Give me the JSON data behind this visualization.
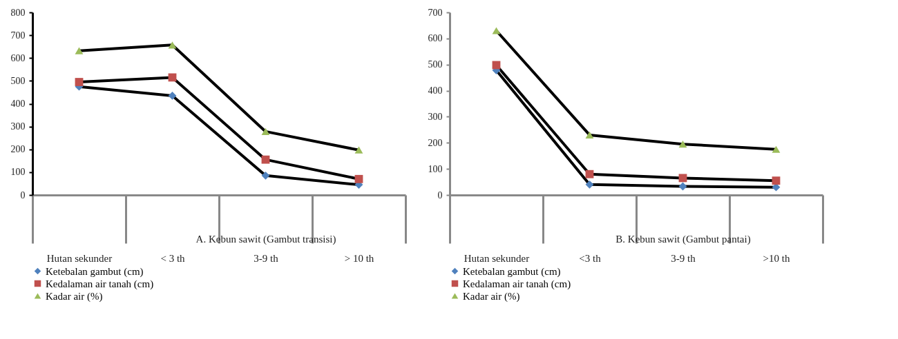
{
  "chart_data": [
    {
      "type": "line",
      "categories": [
        "Hutan sekunder",
        "< 3 th",
        "3-9 th",
        "> 10 th"
      ],
      "xlabel": "A. Kebun sawit (Gambut transisi)",
      "ylim": [
        0,
        800
      ],
      "yticks": [
        0,
        100,
        200,
        300,
        400,
        500,
        600,
        700,
        800
      ],
      "legend": "bottom",
      "grid": false,
      "series": [
        {
          "name": "Ketebalan gambut (cm)",
          "color": "#4f81bd",
          "marker": "diamond",
          "values": [
            475,
            435,
            85,
            45
          ]
        },
        {
          "name": "Kedalaman air tanah (cm)",
          "color": "#c0504d",
          "marker": "square",
          "values": [
            495,
            515,
            155,
            70
          ]
        },
        {
          "name": "Kadar air (%)",
          "color": "#9bbb59",
          "marker": "triangle",
          "values": [
            632,
            657,
            278,
            197
          ]
        }
      ]
    },
    {
      "type": "line",
      "categories": [
        "Hutan sekunder",
        "<3 th",
        "3-9 th",
        ">10 th"
      ],
      "xlabel": "B. Kebun sawit (Gambut pantai)",
      "ylim": [
        0,
        700
      ],
      "yticks": [
        0,
        100,
        200,
        300,
        400,
        500,
        600,
        700
      ],
      "legend": "bottom",
      "grid": false,
      "series": [
        {
          "name": "Ketebalan gambut (cm)",
          "color": "#4f81bd",
          "marker": "diamond",
          "values": [
            478,
            40,
            33,
            30
          ]
        },
        {
          "name": "Kedalaman air tanah (cm)",
          "color": "#c0504d",
          "marker": "square",
          "values": [
            498,
            80,
            65,
            55
          ]
        },
        {
          "name": "Kadar air (%)",
          "color": "#9bbb59",
          "marker": "triangle",
          "values": [
            630,
            230,
            195,
            175
          ]
        }
      ]
    }
  ]
}
